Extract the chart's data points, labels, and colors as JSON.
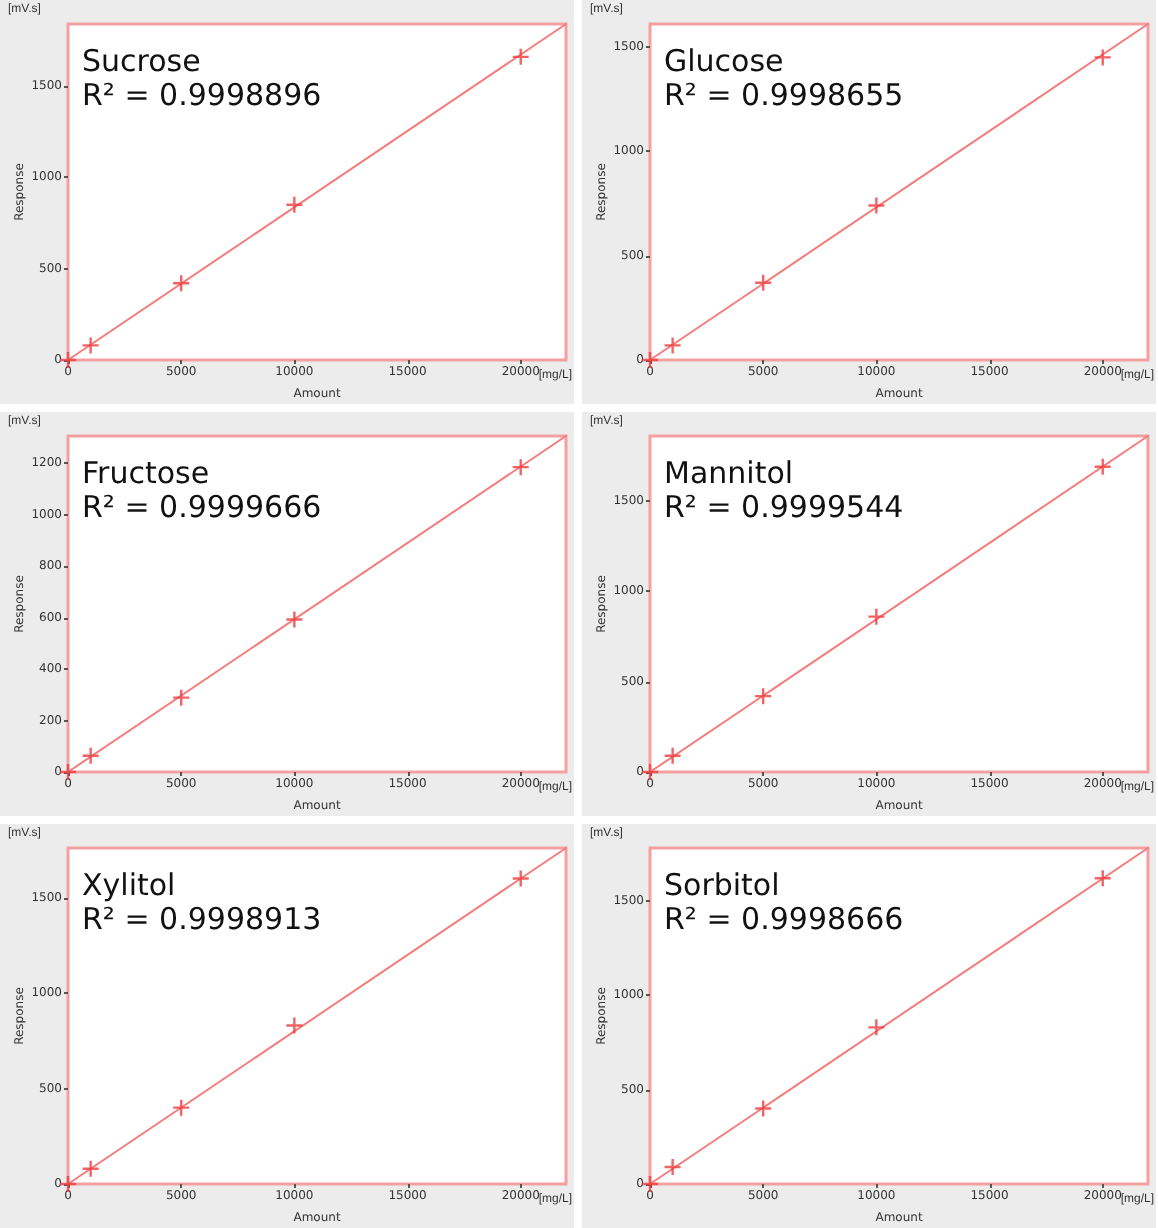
{
  "chart_data": [
    {
      "type": "scatter",
      "title": "Sucrose",
      "subtitle": "R² = 0.9998896",
      "xlabel": "Amount",
      "ylabel": "Response",
      "annotations": [
        "[mV.s]",
        "[mg/L]"
      ],
      "marker": "cross",
      "xlim": [
        0,
        22000
      ],
      "xticks": [
        0,
        5000,
        10000,
        15000,
        20000
      ],
      "ylim": [
        0,
        1840
      ],
      "yticks": [
        0,
        500,
        1000,
        1500
      ],
      "series": [
        {
          "type": "line",
          "marker": "none",
          "color": "#f47c7c",
          "x": [
            0,
            22000
          ],
          "values": [
            0,
            1840
          ]
        },
        {
          "type": "scatter",
          "color": "#f03c3c",
          "x": [
            0,
            1000,
            5000,
            10000,
            20000
          ],
          "values": [
            0,
            80,
            420,
            850,
            1660
          ]
        }
      ]
    },
    {
      "type": "scatter",
      "title": "Glucose",
      "subtitle": "R² = 0.9998655",
      "xlabel": "Amount",
      "ylabel": "Response",
      "annotations": [
        "[mV.s]",
        "[mg/L]"
      ],
      "marker": "cross",
      "xlim": [
        0,
        22000
      ],
      "xticks": [
        0,
        5000,
        10000,
        15000,
        20000
      ],
      "ylim": [
        0,
        1610
      ],
      "yticks": [
        0,
        500,
        1000,
        1500
      ],
      "series": [
        {
          "type": "line",
          "marker": "none",
          "color": "#f47c7c",
          "x": [
            0,
            22000
          ],
          "values": [
            0,
            1610
          ]
        },
        {
          "type": "scatter",
          "color": "#f03c3c",
          "x": [
            0,
            1000,
            5000,
            10000,
            20000
          ],
          "values": [
            0,
            70,
            370,
            740,
            1450
          ]
        }
      ]
    },
    {
      "type": "scatter",
      "title": "Fructose",
      "subtitle": "R² = 0.9999666",
      "xlabel": "Amount",
      "ylabel": "Response",
      "annotations": [
        "[mV.s]",
        "[mg/L]"
      ],
      "marker": "cross",
      "xlim": [
        0,
        22000
      ],
      "xticks": [
        0,
        5000,
        10000,
        15000,
        20000
      ],
      "ylim": [
        0,
        1306
      ],
      "yticks": [
        0,
        200,
        400,
        600,
        800,
        1000,
        1200
      ],
      "series": [
        {
          "type": "line",
          "marker": "none",
          "color": "#f47c7c",
          "x": [
            0,
            22000
          ],
          "values": [
            0,
            1306
          ]
        },
        {
          "type": "scatter",
          "color": "#f03c3c",
          "x": [
            0,
            1000,
            5000,
            10000,
            20000
          ],
          "values": [
            0,
            63,
            289,
            593,
            1185
          ]
        }
      ]
    },
    {
      "type": "scatter",
      "title": "Mannitol",
      "subtitle": "R² = 0.9999544",
      "xlabel": "Amount",
      "ylabel": "Response",
      "annotations": [
        "[mV.s]",
        "[mg/L]"
      ],
      "marker": "cross",
      "xlim": [
        0,
        22000
      ],
      "xticks": [
        0,
        5000,
        10000,
        15000,
        20000
      ],
      "ylim": [
        0,
        1860
      ],
      "yticks": [
        0,
        500,
        1000,
        1500
      ],
      "series": [
        {
          "type": "line",
          "marker": "none",
          "color": "#f47c7c",
          "x": [
            0,
            22000
          ],
          "values": [
            0,
            1860
          ]
        },
        {
          "type": "scatter",
          "color": "#f03c3c",
          "x": [
            0,
            1000,
            5000,
            10000,
            20000
          ],
          "values": [
            0,
            90,
            420,
            860,
            1690
          ]
        }
      ]
    },
    {
      "type": "scatter",
      "title": "Xylitol",
      "subtitle": "R² = 0.9998913",
      "xlabel": "Amount",
      "ylabel": "Response",
      "annotations": [
        "[mV.s]",
        "[mg/L]"
      ],
      "marker": "cross",
      "xlim": [
        0,
        22000
      ],
      "xticks": [
        0,
        5000,
        10000,
        15000,
        20000
      ],
      "ylim": [
        0,
        1760
      ],
      "yticks": [
        0,
        500,
        1000,
        1500
      ],
      "series": [
        {
          "type": "line",
          "marker": "none",
          "color": "#f47c7c",
          "x": [
            0,
            22000
          ],
          "values": [
            0,
            1760
          ]
        },
        {
          "type": "scatter",
          "color": "#f03c3c",
          "x": [
            0,
            1000,
            5000,
            10000,
            20000
          ],
          "values": [
            0,
            80,
            400,
            830,
            1600
          ]
        }
      ]
    },
    {
      "type": "scatter",
      "title": "Sorbitol",
      "subtitle": "R² = 0.9998666",
      "xlabel": "Amount",
      "ylabel": "Response",
      "annotations": [
        "[mV.s]",
        "[mg/L]"
      ],
      "marker": "cross",
      "xlim": [
        0,
        22000
      ],
      "xticks": [
        0,
        5000,
        10000,
        15000,
        20000
      ],
      "ylim": [
        0,
        1780
      ],
      "yticks": [
        0,
        500,
        1000,
        1500
      ],
      "series": [
        {
          "type": "line",
          "marker": "none",
          "color": "#f47c7c",
          "x": [
            0,
            22000
          ],
          "values": [
            0,
            1780
          ]
        },
        {
          "type": "scatter",
          "color": "#f03c3c",
          "x": [
            0,
            1000,
            5000,
            10000,
            20000
          ],
          "values": [
            0,
            90,
            400,
            830,
            1620
          ]
        }
      ]
    }
  ]
}
